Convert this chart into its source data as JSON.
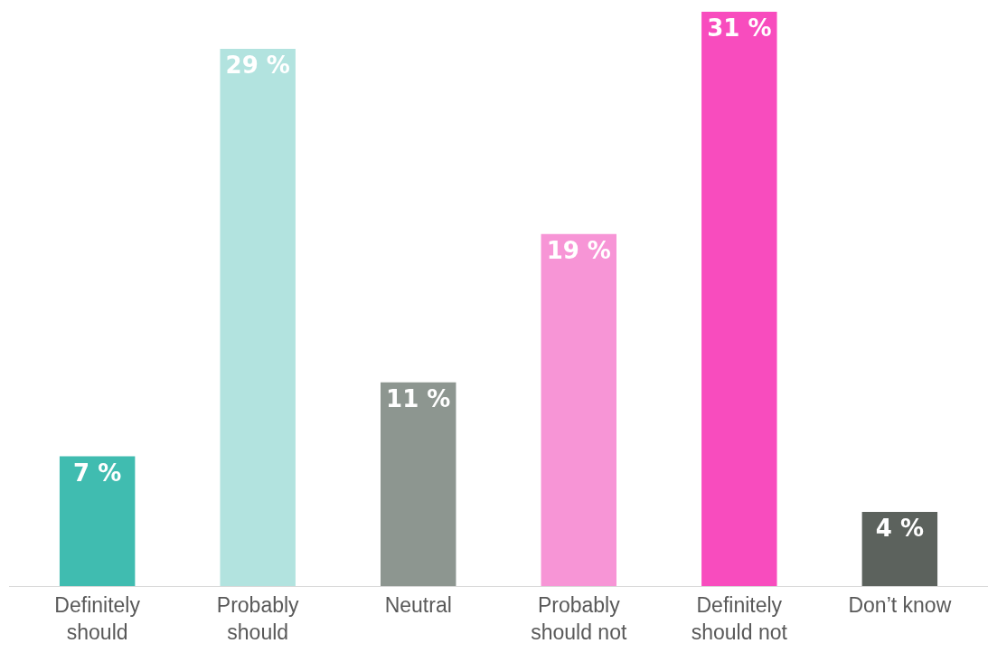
{
  "chart_data": {
    "type": "bar",
    "categories": [
      "Definitely should",
      "Probably should",
      "Neutral",
      "Probably should not",
      "Definitely should not",
      "Don’t know"
    ],
    "values": [
      7,
      29,
      11,
      19,
      31,
      4
    ],
    "colors": [
      "#40bcb0",
      "#b2e3df",
      "#8d9690",
      "#f795d6",
      "#f84cbe",
      "#5c625d"
    ],
    "value_labels": [
      "7 %",
      "29 %",
      "11 %",
      "19 %",
      "31 %",
      "4 %"
    ],
    "ylim": [
      0,
      31
    ],
    "tick_labels": "x"
  }
}
